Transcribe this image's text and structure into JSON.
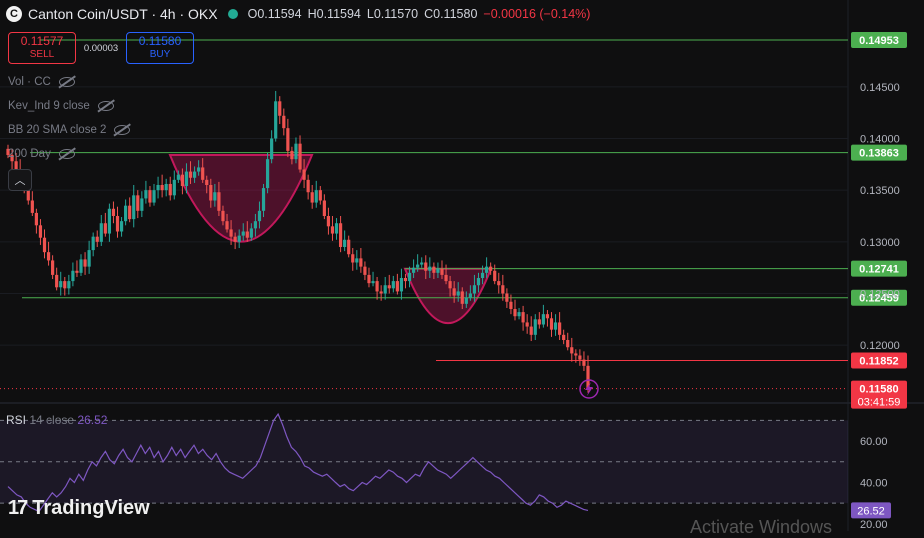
{
  "header": {
    "logo_letter": "C",
    "symbol": "Canton Coin/USDT · 4h · OKX",
    "open": "O0.11594",
    "high": "H0.11594",
    "low": "L0.11570",
    "close": "C0.11580",
    "change": "−0.00016 (−0.14%)"
  },
  "trade": {
    "sell_price": "0.11577",
    "sell_label": "SELL",
    "spread": "0.00003",
    "buy_price": "0.11580",
    "buy_label": "BUY"
  },
  "indicators": [
    "Vol · CC",
    "Kev_Ind 9 close",
    "BB 20 SMA close 2",
    "200 Day"
  ],
  "rsi_legend": {
    "name": "RSI",
    "params": "14 close",
    "value": "26.52"
  },
  "brand": "TradingView",
  "watermark": "Activate Windows",
  "colors": {
    "up": "#26a69a",
    "down": "#ef5350",
    "green_line": "#4caf50",
    "red_line": "#f23645",
    "rsi": "#7e57c2",
    "cup": "#c2185b"
  },
  "chart_data": {
    "type": "candlestick",
    "price_axis_ticks": [
      "0.14500",
      "0.14000",
      "0.13500",
      "0.13000",
      "0.12500",
      "0.12000"
    ],
    "price_range": [
      0.1145,
      0.1505
    ],
    "levels": [
      {
        "label": "0.14953",
        "value": 0.14953,
        "color": "#4caf50"
      },
      {
        "label": "0.13863",
        "value": 0.13863,
        "color": "#4caf50"
      },
      {
        "label": "0.12741",
        "value": 0.12741,
        "color": "#4caf50"
      },
      {
        "label": "0.12459",
        "value": 0.12459,
        "color": "#4caf50"
      },
      {
        "label": "0.11852",
        "value": 0.11852,
        "color": "#f23645"
      }
    ],
    "last_price": {
      "label": "0.11580",
      "countdown": "03:41:59",
      "value": 0.1158
    },
    "closes": [
      0.1384,
      0.1378,
      0.137,
      0.1364,
      0.1352,
      0.134,
      0.1328,
      0.1316,
      0.1304,
      0.129,
      0.1282,
      0.1268,
      0.1256,
      0.1262,
      0.1255,
      0.1262,
      0.1272,
      0.127,
      0.1283,
      0.1276,
      0.1292,
      0.1305,
      0.13,
      0.1318,
      0.1308,
      0.1332,
      0.1325,
      0.131,
      0.132,
      0.1335,
      0.1322,
      0.1345,
      0.133,
      0.1342,
      0.135,
      0.1338,
      0.135,
      0.1355,
      0.135,
      0.1356,
      0.1345,
      0.136,
      0.1365,
      0.1354,
      0.1368,
      0.1362,
      0.1368,
      0.1372,
      0.136,
      0.1355,
      0.134,
      0.1348,
      0.133,
      0.132,
      0.1312,
      0.1305,
      0.13,
      0.1306,
      0.131,
      0.1304,
      0.1313,
      0.132,
      0.133,
      0.1352,
      0.138,
      0.14,
      0.1436,
      0.1422,
      0.141,
      0.1388,
      0.138,
      0.1395,
      0.137,
      0.136,
      0.1348,
      0.1338,
      0.135,
      0.134,
      0.1325,
      0.1315,
      0.1308,
      0.1318,
      0.1295,
      0.1302,
      0.1288,
      0.128,
      0.1284,
      0.1276,
      0.1268,
      0.126,
      0.1262,
      0.1252,
      0.125,
      0.1258,
      0.1255,
      0.1262,
      0.1252,
      0.1265,
      0.1262,
      0.127,
      0.1275,
      0.1278,
      0.128,
      0.1272,
      0.1276,
      0.127,
      0.1274,
      0.1268,
      0.1262,
      0.1255,
      0.1248,
      0.1252,
      0.124,
      0.1246,
      0.125,
      0.1258,
      0.1265,
      0.127,
      0.1276,
      0.1272,
      0.1262,
      0.1258,
      0.125,
      0.1242,
      0.1235,
      0.1228,
      0.1232,
      0.1222,
      0.1218,
      0.121,
      0.1225,
      0.122,
      0.123,
      0.1226,
      0.1215,
      0.1222,
      0.121,
      0.1205,
      0.1198,
      0.1192,
      0.119,
      0.1186,
      0.118,
      0.1158
    ],
    "rsi": {
      "ticks": [
        "60.00",
        "40.00",
        "20.00"
      ],
      "range": [
        18,
        75
      ],
      "band": [
        30,
        70
      ],
      "value_label": "26.52",
      "values": [
        38,
        36,
        34,
        33,
        30,
        28,
        27,
        26,
        29,
        32,
        35,
        33,
        35,
        38,
        42,
        40,
        44,
        41,
        46,
        50,
        48,
        52,
        55,
        51,
        49,
        53,
        56,
        52,
        50,
        54,
        58,
        54,
        57,
        52,
        55,
        50,
        53,
        57,
        53,
        56,
        52,
        55,
        58,
        54,
        56,
        53,
        51,
        54,
        50,
        47,
        45,
        44,
        43,
        42,
        44,
        46,
        48,
        52,
        58,
        64,
        70,
        73,
        68,
        62,
        57,
        55,
        52,
        48,
        47,
        45,
        44,
        43,
        44,
        42,
        40,
        38,
        39,
        37,
        36,
        38,
        40,
        39,
        41,
        43,
        42,
        44,
        46,
        45,
        43,
        42,
        40,
        42,
        44,
        43,
        47,
        50,
        48,
        46,
        45,
        44,
        42,
        44,
        46,
        48,
        50,
        52,
        50,
        48,
        46,
        45,
        43,
        42,
        40,
        38,
        36,
        34,
        32,
        30,
        29,
        31,
        34,
        33,
        31,
        30,
        28,
        29,
        31,
        30,
        29,
        28,
        27,
        26.5
      ]
    }
  }
}
